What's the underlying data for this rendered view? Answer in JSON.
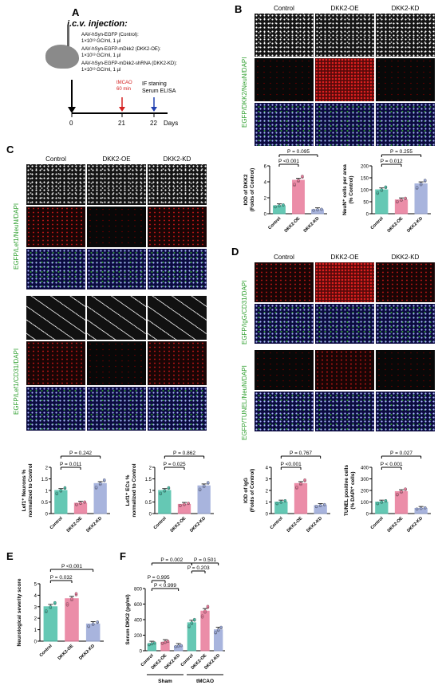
{
  "panelA": {
    "letter": "A",
    "title": "i.c.v. injection:",
    "items": [
      {
        "name": "AAV-hSyn-EGFP (Control):",
        "dose": "1×10¹³ GC/ml, 1 µl"
      },
      {
        "name": "AAV-hSyn-EGFP-mDkk2 (DKK2-OE):",
        "dose": "1×10¹³ GC/ml, 1 µl"
      },
      {
        "name": "AAV-hSyn-EGFP-mDkk2-shRNA (DKK2-KD):",
        "dose": "1×10¹³ GC/ml, 1 µl"
      }
    ],
    "tmcao": "tMCAO",
    "tmcao_dur": "60 min",
    "if_label": "IF staning",
    "elisa_label": "Serum ELISA",
    "ticks": [
      "0",
      "21",
      "22"
    ],
    "days": "Days",
    "colors": {
      "red": "#d42020",
      "blue": "#2040b0"
    }
  },
  "panelB": {
    "letter": "B",
    "cols": [
      "Control",
      "DKK2-OE",
      "DKK2-KD"
    ],
    "ylabel": "EGFP/DKK2/NeuN/DAPI",
    "chart1": {
      "ylabel": "IOD of DKK2\n(Folds of Control)",
      "p1": "P = 0.095",
      "p2": "P <0.001"
    },
    "chart2": {
      "ylabel": "NeuN⁺ cells per area\n(% Control)",
      "p1": "P = 0.255",
      "p2": "P = 0.012"
    }
  },
  "panelC": {
    "letter": "C",
    "cols": [
      "Control",
      "DKK2-OE",
      "DKK2-KD"
    ],
    "ylabel1": "EGFP/Lef1/NeuN/DAPI",
    "ylabel2": "EGFP/Lef1/CD31/DAPI",
    "chart1": {
      "ylabel": "Lef1⁺ Neurons %\nnormalized to Control",
      "p1": "P = 0.242",
      "p2": "P = 0.011"
    },
    "chart2": {
      "ylabel": "Lef1⁺ ECs %\nnormalized to Control",
      "p1": "P = 0.862",
      "p2": "P = 0.025"
    }
  },
  "panelD": {
    "letter": "D",
    "cols": [
      "Control",
      "DKK2-OE",
      "DKK2-KD"
    ],
    "ylabel1": "EGFP/IgG/CD31/DAPI",
    "ylabel2": "EGFP/TUNEL/NeuN/DAPI",
    "chart1": {
      "ylabel": "IOD of IgG\n(Folds of Control)",
      "p1": "P = 0.767",
      "p2": "P <0.001"
    },
    "chart2": {
      "ylabel": "TUNEL positive cells\n(% DAPI⁺ cells)",
      "p1": "P = 0.027",
      "p2": "P < 0.001"
    }
  },
  "panelE": {
    "letter": "E",
    "ylabel": "Neurological severity score",
    "p1": "P <0.001",
    "p2": "P = 0.032"
  },
  "panelF": {
    "letter": "F",
    "ylabel": "Serum DKK2 (pg/ml)",
    "group1": "Sham",
    "group2": "tMCAO",
    "pvals": [
      "P = 0.002",
      "P = 0.501",
      "P = 0.203",
      "P = 0.995",
      "P < 0.999"
    ]
  },
  "chart_data": [
    {
      "type": "bar",
      "id": "B1",
      "categories": [
        "Control",
        "DKK2-OE",
        "DKK2-KD"
      ],
      "values": [
        1.0,
        4.2,
        0.5
      ],
      "ylim": [
        0,
        6
      ],
      "yticks": [
        0,
        2,
        4,
        6
      ],
      "colors": [
        "#4bbfa8",
        "#e87a9a",
        "#9aa8d8"
      ]
    },
    {
      "type": "bar",
      "id": "B2",
      "categories": [
        "Control",
        "DKK2-OE",
        "DKK2-KD"
      ],
      "values": [
        100,
        58,
        125
      ],
      "ylim": [
        0,
        200
      ],
      "yticks": [
        0,
        50,
        100,
        150,
        200
      ],
      "colors": [
        "#4bbfa8",
        "#e87a9a",
        "#9aa8d8"
      ]
    },
    {
      "type": "bar",
      "id": "C1",
      "categories": [
        "Control",
        "DKK2-OE",
        "DKK2-KD"
      ],
      "values": [
        1.0,
        0.45,
        1.3
      ],
      "ylim": [
        0,
        2
      ],
      "yticks": [
        0,
        0.5,
        1.0,
        1.5,
        2.0
      ],
      "colors": [
        "#4bbfa8",
        "#e87a9a",
        "#9aa8d8"
      ]
    },
    {
      "type": "bar",
      "id": "C2",
      "categories": [
        "Control",
        "DKK2-OE",
        "DKK2-KD"
      ],
      "values": [
        1.0,
        0.4,
        1.2
      ],
      "ylim": [
        0,
        2
      ],
      "yticks": [
        0,
        0.5,
        1.0,
        1.5,
        2.0
      ],
      "colors": [
        "#4bbfa8",
        "#e87a9a",
        "#9aa8d8"
      ]
    },
    {
      "type": "bar",
      "id": "D1",
      "categories": [
        "Control",
        "DKK2-OE",
        "DKK2-KD"
      ],
      "values": [
        1.0,
        2.6,
        0.7
      ],
      "ylim": [
        0,
        4
      ],
      "yticks": [
        0,
        1,
        2,
        3,
        4
      ],
      "colors": [
        "#4bbfa8",
        "#e87a9a",
        "#9aa8d8"
      ]
    },
    {
      "type": "bar",
      "id": "D2",
      "categories": [
        "Control",
        "DKK2-OE",
        "DKK2-KD"
      ],
      "values": [
        100,
        190,
        45
      ],
      "ylim": [
        0,
        400
      ],
      "yticks": [
        0,
        100,
        200,
        300,
        400
      ],
      "colors": [
        "#4bbfa8",
        "#e87a9a",
        "#9aa8d8"
      ]
    },
    {
      "type": "bar",
      "id": "E",
      "categories": [
        "Control",
        "DKK2-OE",
        "DKK2-KD"
      ],
      "values": [
        3.0,
        3.7,
        1.5
      ],
      "ylim": [
        0,
        5
      ],
      "yticks": [
        0,
        1,
        2,
        3,
        4,
        5
      ],
      "colors": [
        "#4bbfa8",
        "#e87a9a",
        "#9aa8d8"
      ]
    },
    {
      "type": "bar",
      "id": "F",
      "categories": [
        "Control",
        "DKK2-OE",
        "DKK2-KD",
        "Control",
        "DKK2-OE",
        "DKK2-KD"
      ],
      "values": [
        90,
        110,
        60,
        360,
        510,
        270
      ],
      "ylim": [
        0,
        800
      ],
      "yticks": [
        0,
        200,
        400,
        600,
        800
      ],
      "colors": [
        "#4bbfa8",
        "#e87a9a",
        "#9aa8d8",
        "#4bbfa8",
        "#e87a9a",
        "#9aa8d8"
      ]
    }
  ]
}
